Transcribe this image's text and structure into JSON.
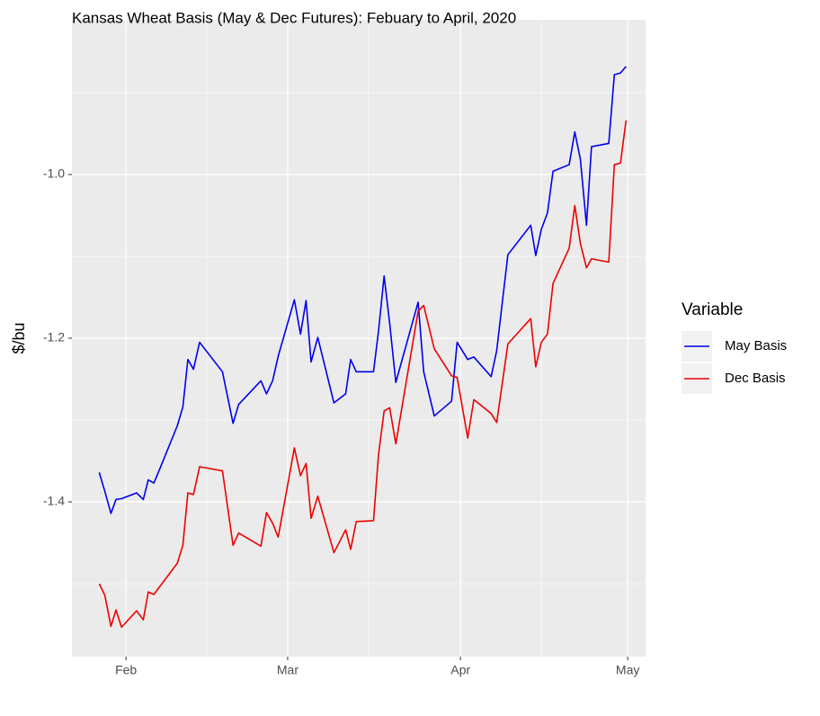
{
  "chart_data": {
    "type": "line",
    "title": "Kansas Wheat Basis (May & Dec Futures): Febuary to April, 2020",
    "y_label": "$/bu",
    "legend_title": "Variable",
    "legend_position": "right",
    "grid": true,
    "x": [
      -4.8,
      -3.8,
      -2.7,
      -1.8,
      -0.8,
      1.9,
      3.1,
      4.0,
      5.0,
      6.1,
      9.2,
      10.2,
      11.1,
      12.1,
      13.2,
      17.3,
      19.2,
      20.2,
      24.2,
      25.2,
      26.3,
      27.3,
      30.2,
      31.3,
      32.3,
      33.2,
      34.4,
      37.3,
      39.4,
      40.3,
      41.3,
      44.4,
      45.3,
      46.3,
      47.3,
      48.4,
      52.4,
      53.4,
      55.3,
      58.4,
      59.4,
      61.3,
      62.4,
      65.5,
      66.5,
      68.5,
      72.6,
      73.5,
      74.5,
      75.6,
      76.6,
      79.5,
      80.5,
      81.5,
      82.6,
      83.5,
      86.6,
      87.6,
      88.7,
      89.7
    ],
    "xlim": [
      -9.7,
      93.2
    ],
    "xticks": [
      {
        "value": 0,
        "label": "Feb"
      },
      {
        "value": 29,
        "label": "Mar"
      },
      {
        "value": 60,
        "label": "Apr"
      },
      {
        "value": 90,
        "label": "May"
      }
    ],
    "ylim": [
      -1.589,
      -0.811
    ],
    "yticks": [
      {
        "value": -1.4,
        "label": "-1.4"
      },
      {
        "value": -1.2,
        "label": "-1.2"
      },
      {
        "value": -1.0,
        "label": "-1.0"
      }
    ],
    "series": [
      {
        "name": "May Basis",
        "color": "#0000ee",
        "values": [
          -1.364,
          -1.387,
          -1.414,
          -1.397,
          -1.396,
          -1.389,
          -1.397,
          -1.373,
          -1.377,
          -1.359,
          -1.307,
          -1.284,
          -1.226,
          -1.238,
          -1.205,
          -1.241,
          -1.304,
          -1.281,
          -1.252,
          -1.268,
          -1.252,
          -1.222,
          -1.153,
          -1.195,
          -1.154,
          -1.229,
          -1.199,
          -1.279,
          -1.268,
          -1.226,
          -1.241,
          -1.241,
          -1.191,
          -1.124,
          -1.182,
          -1.254,
          -1.156,
          -1.241,
          -1.295,
          -1.277,
          -1.205,
          -1.226,
          -1.223,
          -1.247,
          -1.215,
          -1.098,
          -1.062,
          -1.099,
          -1.067,
          -1.047,
          -0.996,
          -0.988,
          -0.948,
          -0.981,
          -1.062,
          -0.966,
          -0.962,
          -0.878,
          -0.876,
          -0.868
        ]
      },
      {
        "name": "Dec Basis",
        "color": "#ee0000",
        "values": [
          -1.5,
          -1.514,
          -1.552,
          -1.532,
          -1.553,
          -1.533,
          -1.544,
          -1.51,
          -1.513,
          -1.503,
          -1.475,
          -1.453,
          -1.389,
          -1.391,
          -1.357,
          -1.362,
          -1.453,
          -1.438,
          -1.454,
          -1.413,
          -1.426,
          -1.443,
          -1.334,
          -1.368,
          -1.353,
          -1.42,
          -1.393,
          -1.462,
          -1.434,
          -1.458,
          -1.424,
          -1.423,
          -1.342,
          -1.289,
          -1.285,
          -1.329,
          -1.167,
          -1.16,
          -1.213,
          -1.246,
          -1.248,
          -1.322,
          -1.275,
          -1.292,
          -1.303,
          -1.207,
          -1.176,
          -1.235,
          -1.205,
          -1.195,
          -1.133,
          -1.09,
          -1.038,
          -1.084,
          -1.114,
          -1.103,
          -1.107,
          -0.988,
          -0.986,
          -0.934
        ]
      }
    ]
  }
}
